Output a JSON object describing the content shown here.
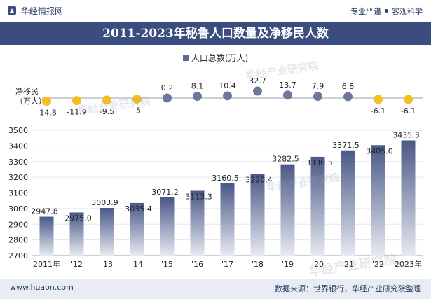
{
  "header": {
    "brand": "华经情报网",
    "tagline_left": "专业严谨",
    "tagline_right": "客观科学"
  },
  "footer": {
    "site": "www.huaon.com",
    "source": "数据来源：世界银行，华经产业研究院整理"
  },
  "watermark": "华经产业研究院",
  "colors": {
    "title_bg": "#3b4c7e",
    "bar_top": "#4a5888",
    "bar_bottom": "#e6e9f0",
    "migration_positive": "#6b7899",
    "migration_negative": "#f5bf1f"
  },
  "chart_data": {
    "type": "bar",
    "title": "2011-2023年秘鲁人口数量及净移民人数",
    "categories": [
      "2011年",
      "'12",
      "'13",
      "'14",
      "'15",
      "'16",
      "'17",
      "'18",
      "'19",
      "'20",
      "'21",
      "'22",
      "2023年"
    ],
    "series": [
      {
        "name": "人口总数(万人)",
        "values": [
          2947.8,
          2975.0,
          3003.9,
          3035.4,
          3071.2,
          3113.3,
          3160.5,
          3220.4,
          3282.5,
          3330.5,
          3371.5,
          3405.0,
          3435.3
        ]
      },
      {
        "name": "净移民（万人）",
        "values": [
          -14.8,
          -11.9,
          -9.5,
          -5,
          0.2,
          8.1,
          10.4,
          32.7,
          13.7,
          7.9,
          6.8,
          -6.1,
          -6.1
        ]
      }
    ],
    "y_ticks": [
      2700,
      2800,
      2900,
      3000,
      3100,
      3200,
      3300,
      3400,
      3500
    ],
    "ylim": [
      2700,
      3500
    ],
    "legend": "人口总数(万人)",
    "migration_label": [
      "净移民",
      "（万人）"
    ]
  }
}
